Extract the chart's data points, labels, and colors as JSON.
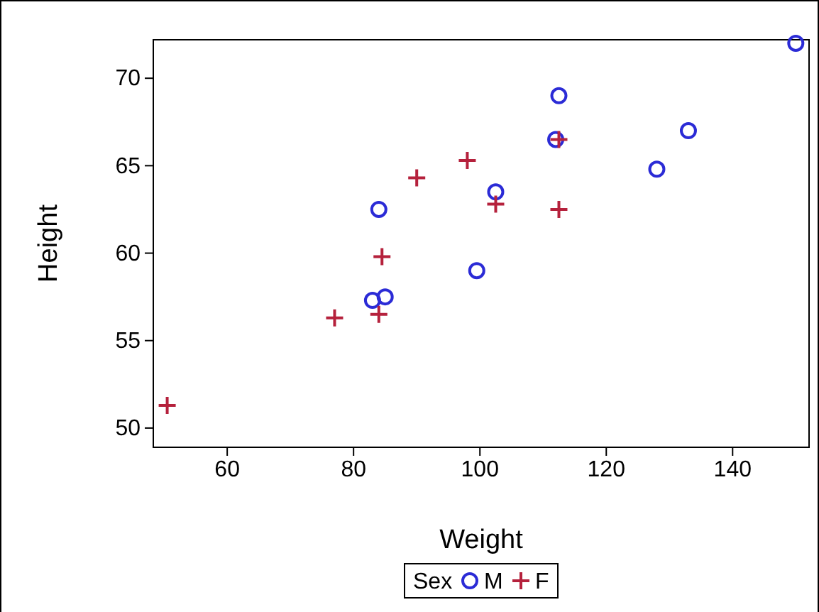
{
  "chart_data": {
    "type": "scatter",
    "xlabel": "Weight",
    "ylabel": "Height",
    "legend_title": "Sex",
    "legend": "bottom",
    "grid": false,
    "xlim": [
      48.3,
      152.1
    ],
    "xticks": [
      60,
      80,
      100,
      120,
      140
    ],
    "ylim": [
      48.9,
      72.2
    ],
    "yticks": [
      50,
      55,
      60,
      65,
      70
    ],
    "series": [
      {
        "name": "M",
        "color": "#2b2bd6",
        "marker": "circle",
        "x": [
          112.5,
          102.5,
          83,
          84,
          99.5,
          150,
          128,
          133,
          85,
          112
        ],
        "values": [
          69,
          63.5,
          57.3,
          62.5,
          59,
          72,
          64.8,
          67,
          57.5,
          66.5
        ]
      },
      {
        "name": "F",
        "color": "#b5213c",
        "marker": "cross",
        "x": [
          84,
          98,
          102.5,
          84.5,
          112.5,
          50.5,
          90,
          77,
          112.5
        ],
        "values": [
          56.5,
          65.3,
          62.8,
          59.8,
          62.5,
          51.3,
          64.3,
          56.3,
          66.5
        ]
      }
    ]
  }
}
